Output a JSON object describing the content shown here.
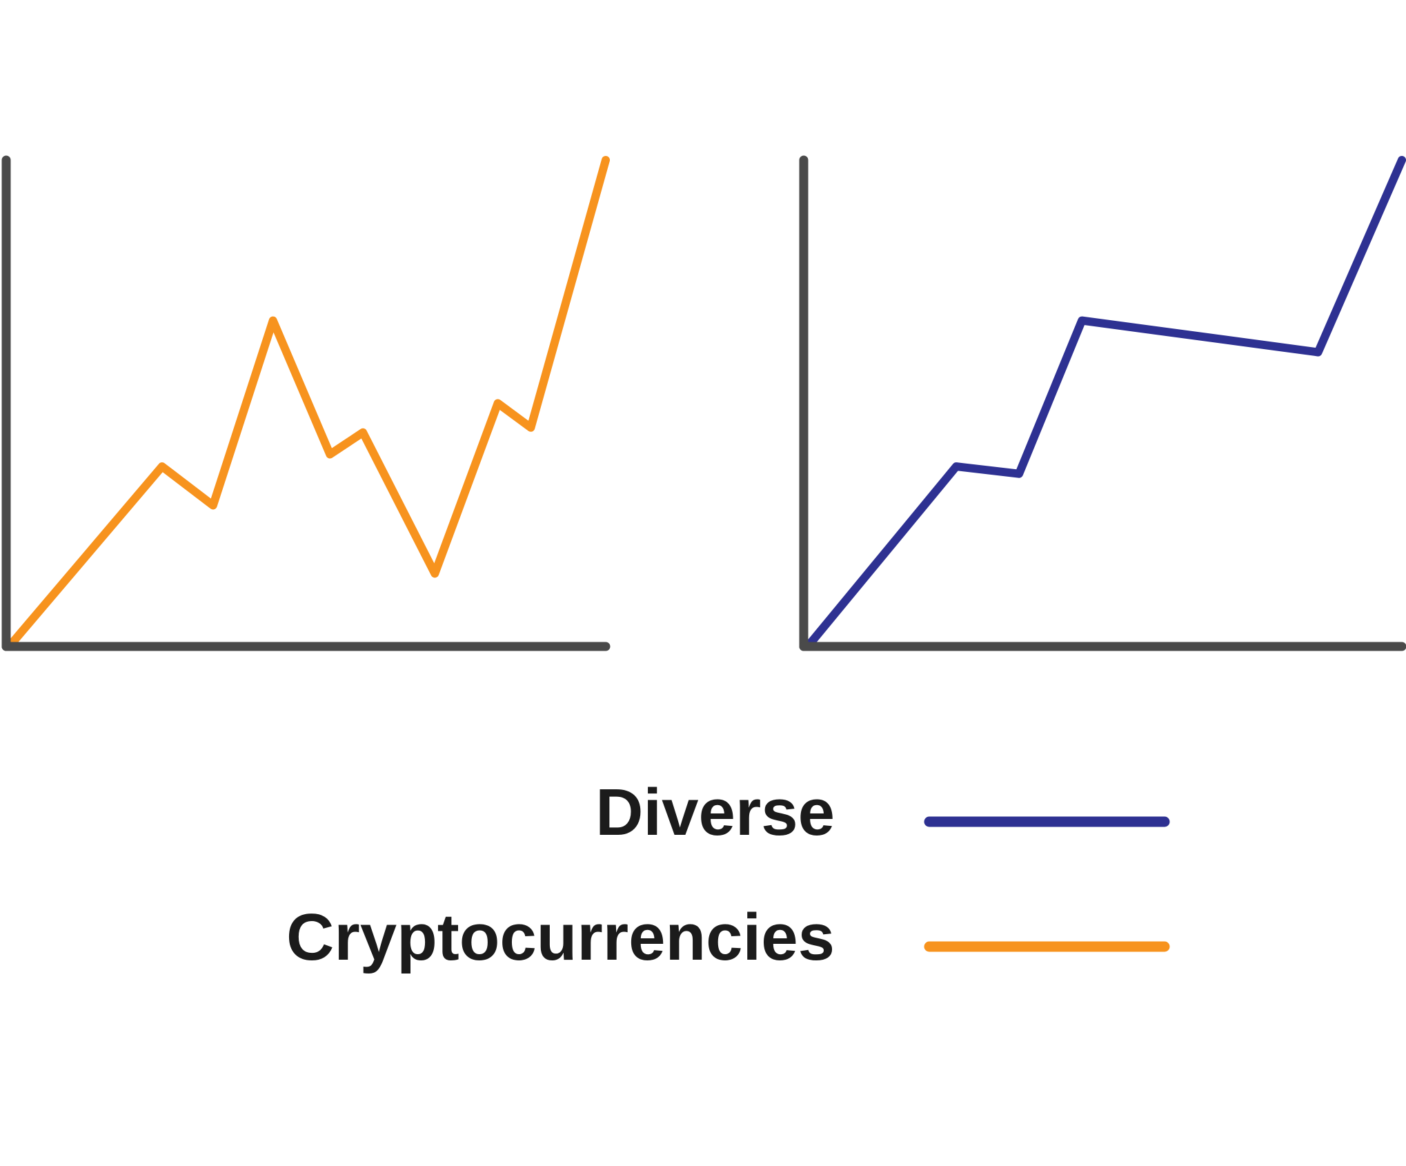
{
  "colors": {
    "axis": "#4a4a4a",
    "diverse": "#2e3192",
    "cryptocurrencies": "#f7931e",
    "background": "#ffffff",
    "text": "#1b1b1b"
  },
  "chart_data": [
    {
      "type": "line",
      "title": "",
      "xlabel": "",
      "ylabel": "",
      "grid": false,
      "xlim": [
        0,
        10
      ],
      "ylim": [
        0,
        10
      ],
      "series": [
        {
          "name": "Cryptocurrencies",
          "color": "#f7931e",
          "x": [
            0.05,
            2.6,
            3.45,
            4.45,
            5.4,
            5.95,
            7.15,
            8.2,
            8.75,
            10.0
          ],
          "y": [
            0.0,
            3.7,
            2.9,
            6.7,
            3.95,
            4.4,
            1.5,
            5.0,
            4.5,
            10.0
          ]
        }
      ]
    },
    {
      "type": "line",
      "title": "",
      "xlabel": "",
      "ylabel": "",
      "grid": false,
      "xlim": [
        0,
        10
      ],
      "ylim": [
        0,
        10
      ],
      "series": [
        {
          "name": "Diverse",
          "color": "#2e3192",
          "x": [
            0.1,
            2.55,
            3.6,
            4.65,
            8.6,
            10.0
          ],
          "y": [
            0.05,
            3.7,
            3.55,
            6.7,
            6.05,
            10.0
          ]
        }
      ]
    }
  ],
  "legend": {
    "placement": "bottom",
    "items": [
      {
        "label": "Diverse",
        "color": "#2e3192"
      },
      {
        "label": "Cryptocurrencies",
        "color": "#f7931e"
      }
    ]
  }
}
